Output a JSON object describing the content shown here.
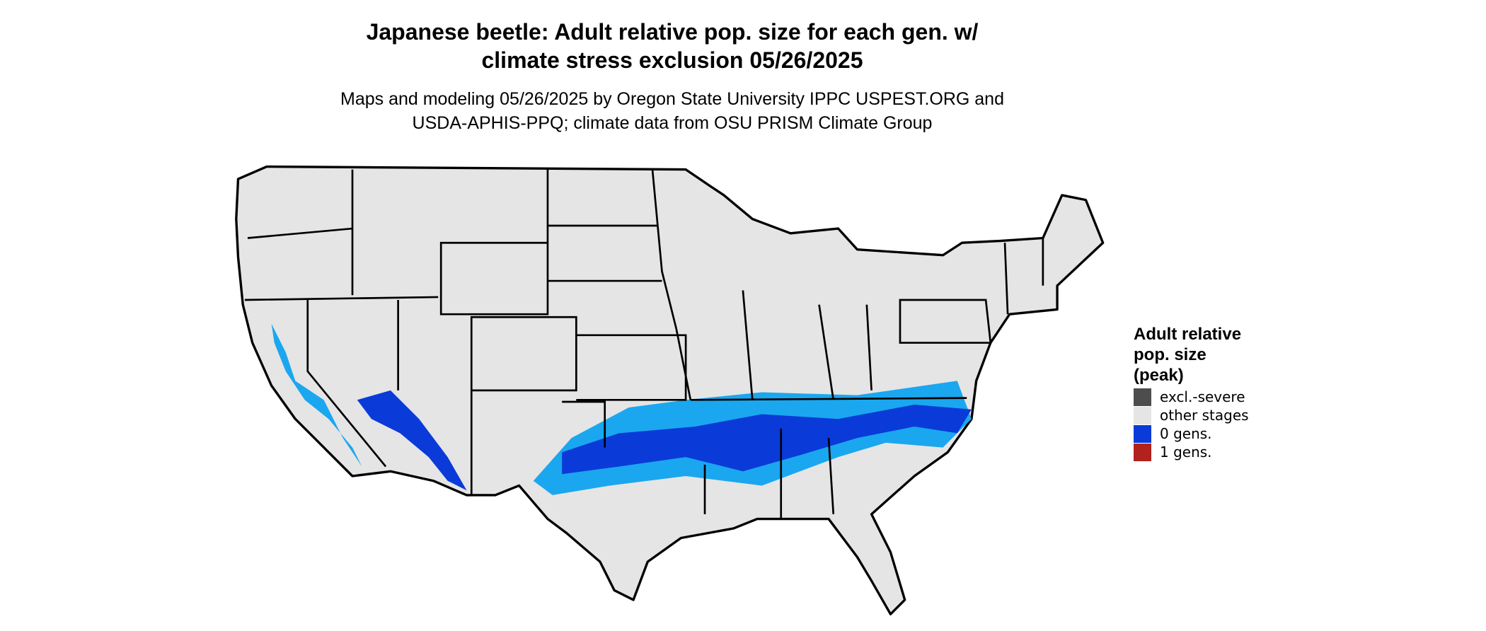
{
  "title": [
    "Japanese beetle: Adult relative pop. size for each gen. w/",
    "climate stress exclusion 05/26/2025"
  ],
  "subtitle": [
    "Maps and modeling 05/26/2025 by Oregon State University IPPC USPEST.ORG and",
    "USDA-APHIS-PPQ; climate data from OSU PRISM Climate Group"
  ],
  "legend": {
    "title": [
      "Adult relative",
      "pop. size",
      "(peak)"
    ],
    "items": [
      {
        "label": "excl.-severe",
        "color": "#4d4d4d"
      },
      {
        "label": "other stages",
        "color": "#e5e5e5"
      },
      {
        "label": "0 gens.",
        "color": "#0a3bd8"
      },
      {
        "label": "1 gens.",
        "color": "#b2221c"
      }
    ]
  }
}
